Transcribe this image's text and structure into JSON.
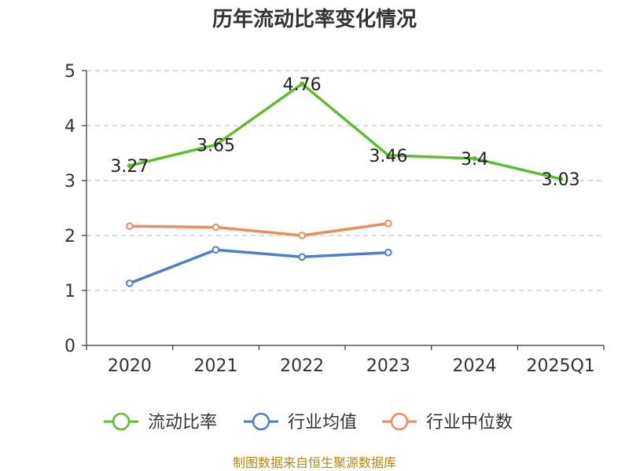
{
  "chart_data": {
    "type": "line",
    "title": "历年流动比率变化情况",
    "categories": [
      "2020",
      "2021",
      "2022",
      "2023",
      "2024",
      "2025Q1"
    ],
    "ylim": [
      0,
      5
    ],
    "yticks": [
      0,
      1,
      2,
      3,
      4,
      5
    ],
    "grid": true,
    "legend_position": "bottom",
    "series": [
      {
        "name": "流动比率",
        "color": "#5cbf2a",
        "values": [
          3.27,
          3.65,
          4.76,
          3.46,
          3.4,
          3.03
        ],
        "labels": [
          "3.27",
          "3.65",
          "4.76",
          "3.46",
          "3.4",
          "3.03"
        ],
        "show_labels": true
      },
      {
        "name": "行业均值",
        "color": "#4a7fd4",
        "values": [
          1.13,
          1.74,
          1.61,
          1.69,
          null,
          null
        ],
        "show_labels": false
      },
      {
        "name": "行业中位数",
        "color": "#f28b5a",
        "values": [
          2.17,
          2.15,
          2.0,
          2.22,
          null,
          null
        ],
        "show_labels": false
      }
    ]
  },
  "source_text": "制图数据来自恒生聚源数据库"
}
